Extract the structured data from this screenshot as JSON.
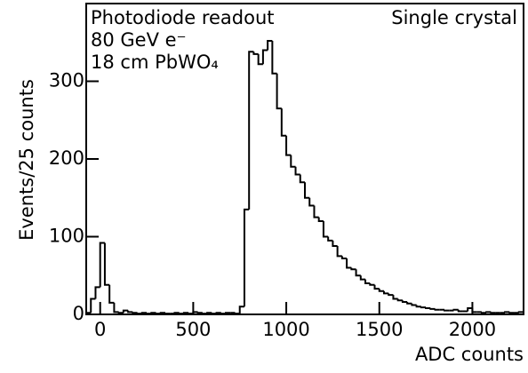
{
  "chart_data": {
    "type": "histogram",
    "xlabel": "ADC counts",
    "ylabel": "Events/25 counts",
    "annotations": [
      "Photodiode readout",
      "80 GeV e⁻",
      "18 cm PbWO₄",
      "Single crystal"
    ],
    "bins": [
      -75,
      -50,
      -25,
      0,
      25,
      50,
      75,
      100,
      125,
      150,
      175,
      200,
      225,
      250,
      275,
      300,
      325,
      350,
      375,
      400,
      425,
      450,
      475,
      500,
      525,
      550,
      575,
      600,
      625,
      650,
      675,
      700,
      725,
      750,
      775,
      800,
      825,
      850,
      875,
      900,
      925,
      950,
      975,
      1000,
      1025,
      1050,
      1075,
      1100,
      1125,
      1150,
      1175,
      1200,
      1225,
      1250,
      1275,
      1300,
      1325,
      1350,
      1375,
      1400,
      1425,
      1450,
      1475,
      1500,
      1525,
      1550,
      1575,
      1600,
      1625,
      1650,
      1675,
      1700,
      1725,
      1750,
      1775,
      1800,
      1825,
      1850,
      1875,
      1900,
      1925,
      1950,
      1975,
      2000,
      2025,
      2050,
      2075,
      2100,
      2125,
      2150,
      2175,
      2200,
      2225,
      2250,
      2275
    ],
    "counts": [
      2,
      20,
      35,
      92,
      38,
      15,
      3,
      2,
      5,
      3,
      2,
      1,
      2,
      1,
      2,
      1,
      2,
      1,
      1,
      2,
      1,
      2,
      1,
      3,
      2,
      1,
      2,
      1,
      2,
      1,
      2,
      2,
      1,
      10,
      135,
      338,
      335,
      322,
      340,
      352,
      310,
      265,
      230,
      205,
      190,
      180,
      170,
      150,
      140,
      125,
      120,
      100,
      95,
      88,
      75,
      72,
      60,
      58,
      50,
      45,
      40,
      38,
      33,
      30,
      27,
      25,
      20,
      18,
      16,
      14,
      12,
      10,
      9,
      8,
      7,
      6,
      6,
      5,
      5,
      6,
      4,
      4,
      8,
      3,
      3,
      2,
      3,
      2,
      2,
      2,
      3,
      2,
      2,
      3
    ],
    "color": "#000000",
    "xlim": [
      -75,
      2275
    ],
    "ylim": [
      0,
      400
    ],
    "xticks": [
      0,
      500,
      1000,
      1500,
      2000
    ],
    "yticks": [
      0,
      100,
      200,
      300
    ]
  }
}
